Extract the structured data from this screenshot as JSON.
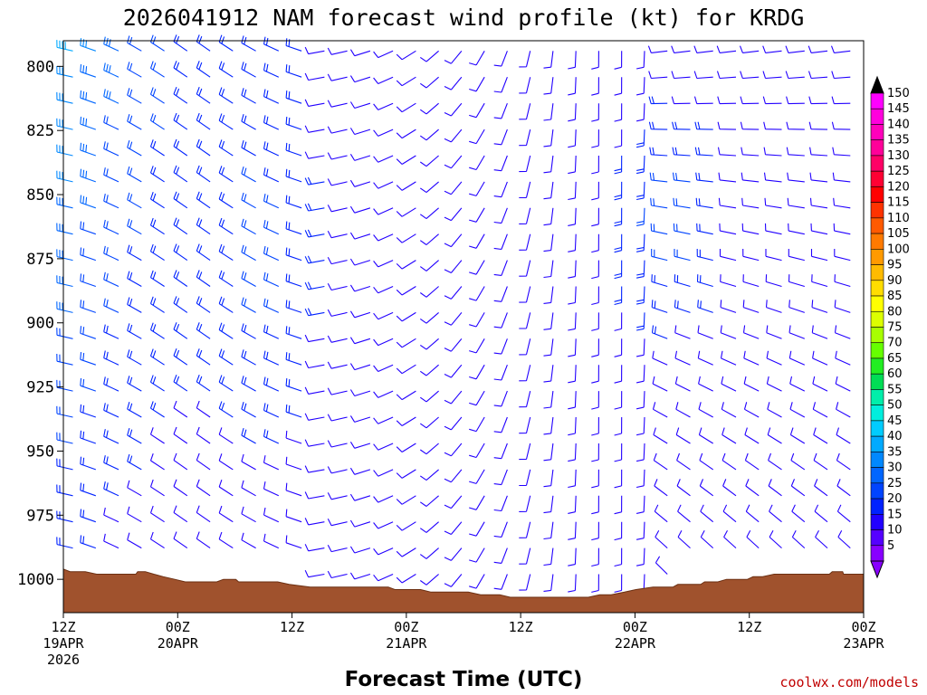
{
  "chart_data": {
    "type": "wind-barb-profile",
    "title": "2026041912 NAM forecast wind profile (kt) for KRDG",
    "xlabel": "Forecast Time (UTC)",
    "credit": "coolwx.com/models",
    "units": "kt",
    "y_axis": {
      "ticks": [
        "800",
        "825",
        "850",
        "875",
        "900",
        "925",
        "950",
        "975",
        "1000"
      ],
      "range": [
        790,
        1013
      ],
      "inverted": true
    },
    "x_axis": {
      "range_hours": [
        0,
        84
      ],
      "ticks": [
        {
          "l1": "12Z",
          "l2": "19APR",
          "l3": "2026"
        },
        {
          "l1": "00Z",
          "l2": "20APR",
          "l3": ""
        },
        {
          "l1": "12Z",
          "l2": "",
          "l3": ""
        },
        {
          "l1": "00Z",
          "l2": "21APR",
          "l3": ""
        },
        {
          "l1": "12Z",
          "l2": "",
          "l3": ""
        },
        {
          "l1": "00Z",
          "l2": "22APR",
          "l3": ""
        },
        {
          "l1": "12Z",
          "l2": "",
          "l3": ""
        },
        {
          "l1": "00Z",
          "l2": "23APR",
          "l3": ""
        }
      ]
    },
    "colorbar": {
      "labels": [
        "150",
        "145",
        "140",
        "135",
        "130",
        "125",
        "120",
        "115",
        "110",
        "105",
        "100",
        "95",
        "90",
        "85",
        "80",
        "75",
        "70",
        "65",
        "60",
        "55",
        "50",
        "45",
        "40",
        "35",
        "30",
        "25",
        "20",
        "15",
        "10",
        "5"
      ],
      "colors": [
        "#ff00ff",
        "#ff00dd",
        "#ff00bb",
        "#ff0099",
        "#ff0066",
        "#ff0033",
        "#ff0000",
        "#ff3300",
        "#ff5a00",
        "#ff7a00",
        "#ff9a00",
        "#ffbb00",
        "#ffdd00",
        "#ffff00",
        "#dcff00",
        "#a8ff00",
        "#66ff00",
        "#22ee22",
        "#00dd55",
        "#00eeaa",
        "#00eedd",
        "#00ccff",
        "#00aaff",
        "#0088ff",
        "#0066ff",
        "#0044ff",
        "#0022ff",
        "#2200ff",
        "#5500ff",
        "#8800ff"
      ]
    },
    "surface_pressure": [
      [
        0,
        996
      ],
      [
        0.7,
        997
      ],
      [
        2.3,
        997
      ],
      [
        3.5,
        998
      ],
      [
        7.6,
        998
      ],
      [
        7.8,
        997
      ],
      [
        8.6,
        997
      ],
      [
        9.5,
        998
      ],
      [
        10.5,
        999
      ],
      [
        11.7,
        1000
      ],
      [
        12.8,
        1001
      ],
      [
        16.1,
        1001
      ],
      [
        16.8,
        1000
      ],
      [
        18.1,
        1000
      ],
      [
        18.4,
        1001
      ],
      [
        22.5,
        1001
      ],
      [
        23.7,
        1002
      ],
      [
        25.9,
        1003
      ],
      [
        34.1,
        1003
      ],
      [
        34.8,
        1004
      ],
      [
        37.5,
        1004
      ],
      [
        38.6,
        1005
      ],
      [
        42.5,
        1005
      ],
      [
        43.8,
        1006
      ],
      [
        45.8,
        1006
      ],
      [
        46.9,
        1007
      ],
      [
        55.1,
        1007
      ],
      [
        56.3,
        1006
      ],
      [
        57.5,
        1006
      ],
      [
        58.9,
        1005
      ],
      [
        60.1,
        1004
      ],
      [
        61.9,
        1003
      ],
      [
        64.0,
        1003
      ],
      [
        64.5,
        1002
      ],
      [
        66.9,
        1002
      ],
      [
        67.3,
        1001
      ],
      [
        68.7,
        1001
      ],
      [
        69.6,
        1000
      ],
      [
        71.8,
        1000
      ],
      [
        72.4,
        999
      ],
      [
        73.4,
        999
      ],
      [
        74.6,
        998
      ],
      [
        80.4,
        998
      ],
      [
        80.7,
        997
      ],
      [
        81.8,
        997
      ],
      [
        81.9,
        998
      ],
      [
        84,
        998
      ]
    ]
  }
}
